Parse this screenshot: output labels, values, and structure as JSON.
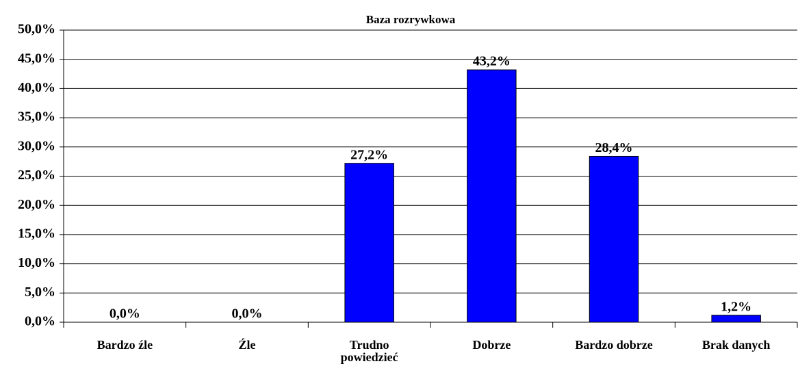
{
  "chart_data": {
    "type": "bar",
    "title": "Baza rozrywkowa",
    "categories": [
      "Bardzo źle",
      "Źle",
      "Trudno powiedzieć",
      "Dobrze",
      "Bardzo dobrze",
      "Brak danych"
    ],
    "values": [
      0,
      0,
      27.2,
      43.2,
      28.4,
      1.2
    ],
    "value_labels": [
      "0,0%",
      "0,0%",
      "27,2%",
      "43,2%",
      "28,4%",
      "1,2%"
    ],
    "color": "#0000ff",
    "ylim": [
      0,
      50
    ],
    "yticks": [
      {
        "value": 0,
        "label": "0,0%"
      },
      {
        "value": 5,
        "label": "5,0%"
      },
      {
        "value": 10,
        "label": "10,0%"
      },
      {
        "value": 15,
        "label": "15,0%"
      },
      {
        "value": 20,
        "label": "20,0%"
      },
      {
        "value": 25,
        "label": "25,0%"
      },
      {
        "value": 30,
        "label": "30,0%"
      },
      {
        "value": 35,
        "label": "35,0%"
      },
      {
        "value": 40,
        "label": "40,0%"
      },
      {
        "value": 45,
        "label": "45,0%"
      },
      {
        "value": 50,
        "label": "50,0%"
      }
    ],
    "grid": true
  }
}
